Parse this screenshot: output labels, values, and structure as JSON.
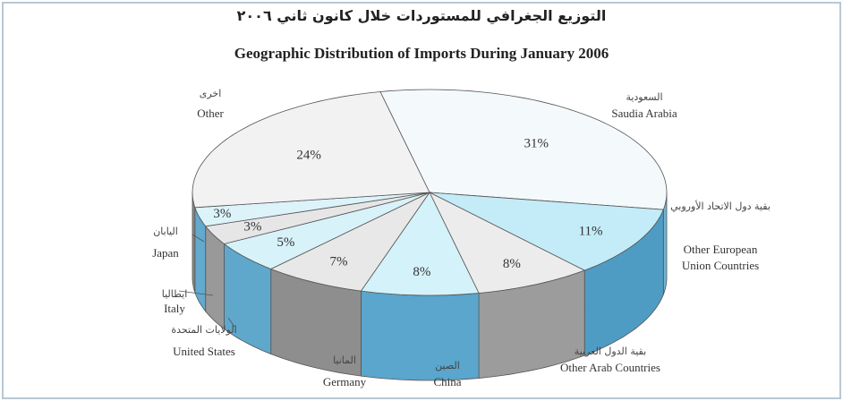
{
  "chart_data": {
    "type": "pie",
    "title": "التوزيع الجغرافي للمستوردات خلال كانون ثاني ٢٠٠٦",
    "subtitle": "Geographic Distribution of Imports During  January 2006",
    "categories": [
      "Saudia Arabia",
      "Other European Union Countries",
      "Other Arab Countries",
      "China",
      "Germany",
      "United States",
      "Italy",
      "Japan",
      "Other"
    ],
    "categories_ar": [
      "السعودية",
      "بقية دول الاتحاد الأوروبي",
      "بقية الدول العربية",
      "الصين",
      "المانيا",
      "الولايات المتحدة",
      "ايطاليا",
      "اليابان",
      "اخرى"
    ],
    "values": [
      31,
      11,
      8,
      8,
      7,
      5,
      3,
      3,
      24
    ],
    "value_labels": [
      "31%",
      "11%",
      "8%",
      "8%",
      "7%",
      "5%",
      "3%",
      "3%",
      "24%"
    ],
    "colors": [
      "#f4f9fb",
      "#c4ecf8",
      "#ececec",
      "#d4f2fa",
      "#e8e8e8",
      "#d8f2fa",
      "#e6e6e6",
      "#dcf3fa",
      "#f2f2f2"
    ],
    "side_colors": [
      "#6fb6d6",
      "#4e9cc4",
      "#9c9c9c",
      "#5aa6cc",
      "#8e8e8e",
      "#5fa8cc",
      "#999999",
      "#62aace",
      "#8a8a8a"
    ]
  }
}
